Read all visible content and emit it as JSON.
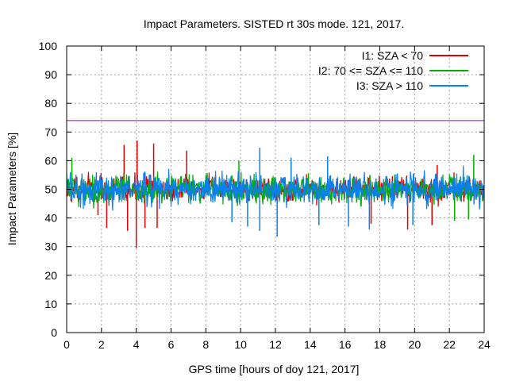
{
  "chart_data": {
    "type": "line",
    "title": "Impact Parameters. SISTED rt 30s mode. 121, 2017.",
    "xlabel": "GPS time [hours of doy 121, 2017]",
    "ylabel": "Impact Parameters [%]",
    "xlim": [
      0,
      24
    ],
    "ylim": [
      0,
      100
    ],
    "xticks": [
      0,
      2,
      4,
      6,
      8,
      10,
      12,
      14,
      16,
      18,
      20,
      22,
      24
    ],
    "yticks": [
      0,
      10,
      20,
      30,
      40,
      50,
      60,
      70,
      80,
      90,
      100
    ],
    "grid": true,
    "legend_position": "top-right",
    "reference_line": {
      "y": 74,
      "color": "#9400d3"
    },
    "series": [
      {
        "name": "I1: SZA < 70",
        "color": "#e00000",
        "center": 50,
        "typical_range": [
          44,
          57
        ],
        "spikes": [
          {
            "x": 3.5,
            "y": 35.5
          },
          {
            "x": 4.0,
            "y": 29.5
          },
          {
            "x": 4.05,
            "y": 67
          },
          {
            "x": 3.3,
            "y": 65.5
          },
          {
            "x": 5.0,
            "y": 66
          },
          {
            "x": 4.5,
            "y": 36.5
          },
          {
            "x": 5.2,
            "y": 36.5
          },
          {
            "x": 2.3,
            "y": 36.5
          },
          {
            "x": 1.8,
            "y": 41
          },
          {
            "x": 6.9,
            "y": 63.5
          },
          {
            "x": 19.6,
            "y": 36
          },
          {
            "x": 21.0,
            "y": 37.5
          },
          {
            "x": 21.3,
            "y": 58.5
          },
          {
            "x": 17.5,
            "y": 38
          }
        ]
      },
      {
        "name": "I2: 70 <= SZA <= 110",
        "color": "#00b000",
        "center": 50,
        "typical_range": [
          43,
          58
        ],
        "spikes": [
          {
            "x": 0.3,
            "y": 61
          },
          {
            "x": 23.4,
            "y": 62
          },
          {
            "x": 23.1,
            "y": 39.5
          },
          {
            "x": 22.3,
            "y": 39
          },
          {
            "x": 9.9,
            "y": 60
          },
          {
            "x": 12.9,
            "y": 59.5
          }
        ]
      },
      {
        "name": "I3: SZA > 110",
        "color": "#0a7ff0",
        "center": 50,
        "typical_range": [
          42,
          59
        ],
        "spikes": [
          {
            "x": 11.1,
            "y": 64.5
          },
          {
            "x": 11.1,
            "y": 35.5
          },
          {
            "x": 12.1,
            "y": 33.5
          },
          {
            "x": 14.5,
            "y": 37.5
          },
          {
            "x": 15.0,
            "y": 61.5
          },
          {
            "x": 12.9,
            "y": 61
          },
          {
            "x": 10.4,
            "y": 37
          },
          {
            "x": 17.4,
            "y": 36
          },
          {
            "x": 19.9,
            "y": 37.5
          },
          {
            "x": 16.2,
            "y": 37
          },
          {
            "x": 9.5,
            "y": 38.5
          }
        ]
      }
    ]
  }
}
